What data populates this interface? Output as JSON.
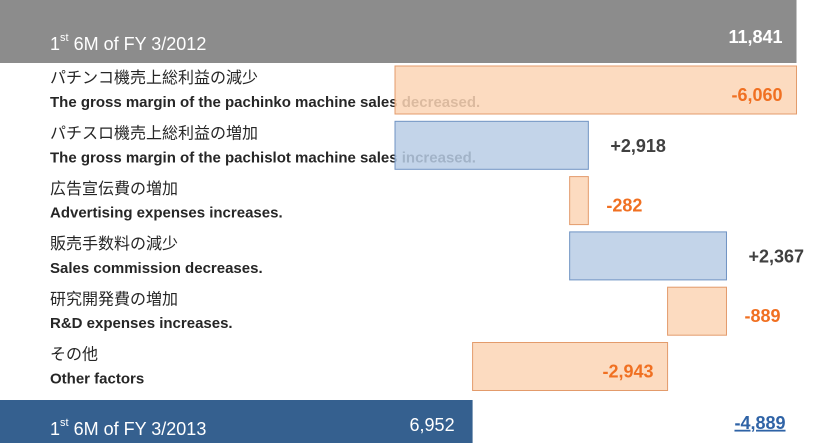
{
  "chart_data": {
    "type": "waterfall",
    "start": {
      "label": "1st 6M of FY 3/2012",
      "value": 11841,
      "value_label": "11,841",
      "color": "#8c8c8c"
    },
    "end": {
      "label": "1st 6M of FY 3/2013",
      "value": 6952,
      "value_label": "6,952",
      "color": "#35608f"
    },
    "categories": [
      [
        "パチンコ機売上総利益の減少",
        "The gross margin of the pachinko machine sales decreased."
      ],
      [
        "パチスロ機売上総利益の増加",
        "The gross margin of the pachislot machine sales increased."
      ],
      [
        "広告宣伝費の増加",
        "Advertising expenses increases."
      ],
      [
        "販売手数料の減少",
        "Sales commission decreases."
      ],
      [
        "研究開発費の増加",
        "R&D expenses increases."
      ],
      [
        "その他",
        "Other factors"
      ]
    ],
    "values": [
      -6060,
      2918,
      -282,
      2367,
      -889,
      -2943
    ],
    "value_labels": [
      "-6,060",
      "+2,918",
      "-282",
      "+2,367",
      "-889",
      "-2,943"
    ],
    "net": {
      "value": -4889,
      "value_label": "-4,889"
    },
    "colors": {
      "increase": "#b9cde5",
      "decrease": "#fcd5b5"
    },
    "xlim": [
      -181,
      12271
    ]
  }
}
